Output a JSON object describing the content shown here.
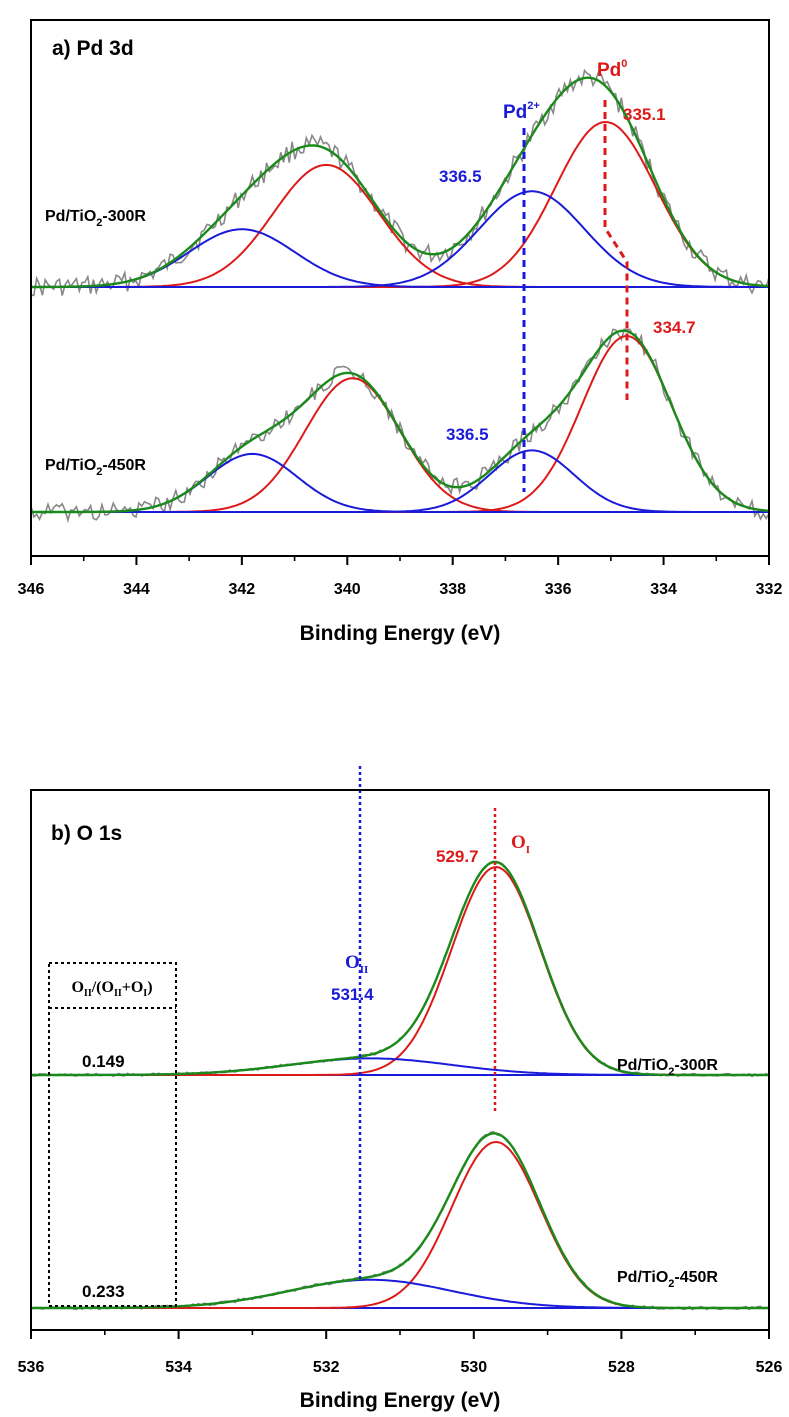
{
  "chart_data": [
    {
      "type": "line",
      "panel_label": "a) Pd 3d",
      "xlabel": "Binding Energy (eV)",
      "ylabel": "",
      "xlim": [
        346,
        332
      ],
      "x_reversed": true,
      "xticks": [
        346,
        344,
        342,
        340,
        338,
        336,
        334,
        332
      ],
      "grid": false,
      "legend": "none",
      "colors": {
        "raw": "#888888",
        "envelope": "#1a8a1a",
        "pd0_component": "#dd1a1a",
        "pd2_component": "#1a1ad9",
        "baseline": "#1a1ad9"
      },
      "spectra": [
        {
          "name": "Pd/TiO",
          "name_sub": "2",
          "name_suffix": "-300R",
          "components": [
            {
              "species": "Pd0",
              "center": 335.1,
              "amplitude": 1.0,
              "sigma": 0.95
            },
            {
              "species": "Pd0",
              "center": 340.4,
              "amplitude": 0.74,
              "sigma": 1.0
            },
            {
              "species": "Pd2+",
              "center": 336.5,
              "amplitude": 0.58,
              "sigma": 1.0
            },
            {
              "species": "Pd2+",
              "center": 342.0,
              "amplitude": 0.35,
              "sigma": 1.0
            }
          ]
        },
        {
          "name": "Pd/TiO",
          "name_sub": "2",
          "name_suffix": "-450R",
          "components": [
            {
              "species": "Pd0",
              "center": 334.7,
              "amplitude": 1.0,
              "sigma": 0.85
            },
            {
              "species": "Pd0",
              "center": 339.9,
              "amplitude": 0.76,
              "sigma": 0.9
            },
            {
              "species": "Pd2+",
              "center": 336.5,
              "amplitude": 0.35,
              "sigma": 0.8
            },
            {
              "species": "Pd2+",
              "center": 341.8,
              "amplitude": 0.33,
              "sigma": 0.85
            }
          ]
        }
      ],
      "annotations": {
        "pd2_label": "Pd",
        "pd2_sup": "2+",
        "pd0_label": "Pd",
        "pd0_sup": "0",
        "peak_300_pd0": "335.1",
        "peak_300_pd2": "336.5",
        "peak_450_pd0": "334.7",
        "peak_450_pd2": "336.5"
      },
      "reference_lines": [
        {
          "species": "Pd2+",
          "x": 336.6
        },
        {
          "species": "Pd0",
          "x_top": 335.1,
          "x_bottom": 334.7
        }
      ]
    },
    {
      "type": "line",
      "panel_label": "b) O 1s",
      "xlabel": "Binding Energy (eV)",
      "ylabel": "",
      "xlim": [
        536,
        526
      ],
      "x_reversed": true,
      "xticks": [
        536,
        534,
        532,
        530,
        528,
        526
      ],
      "grid": false,
      "legend": "none",
      "colors": {
        "raw": "#888888",
        "envelope": "#1a8a1a",
        "OI_component": "#dd1a1a",
        "OII_component": "#1a1ad9"
      },
      "spectra": [
        {
          "name": "Pd/TiO",
          "name_sub": "2",
          "name_suffix": "-300R",
          "ratio": "0.149",
          "components": [
            {
              "species": "OI",
              "center": 529.7,
              "amplitude": 1.0,
              "sigma": 0.6
            },
            {
              "species": "OII",
              "center": 531.4,
              "amplitude": 0.08,
              "sigma": 1.1
            }
          ]
        },
        {
          "name": "Pd/TiO",
          "name_sub": "2",
          "name_suffix": "-450R",
          "ratio": "0.233",
          "components": [
            {
              "species": "OI",
              "center": 529.7,
              "amplitude": 1.0,
              "sigma": 0.6
            },
            {
              "species": "OII",
              "center": 531.4,
              "amplitude": 0.17,
              "sigma": 1.1
            }
          ]
        }
      ],
      "annotations": {
        "OI_label": "O",
        "OI_sub": "I",
        "OII_label": "O",
        "OII_sub": "II",
        "peak_OI": "529.7",
        "peak_OII": "531.4",
        "ratio_box": {
          "p1": "O",
          "s1": "II",
          "p2": "/(O",
          "s2": "II",
          "p3": "+O",
          "s3": "I",
          "p4": ")"
        }
      },
      "reference_lines": [
        {
          "species": "OII",
          "x": 531.55
        },
        {
          "species": "OI",
          "x": 529.7
        }
      ]
    }
  ]
}
